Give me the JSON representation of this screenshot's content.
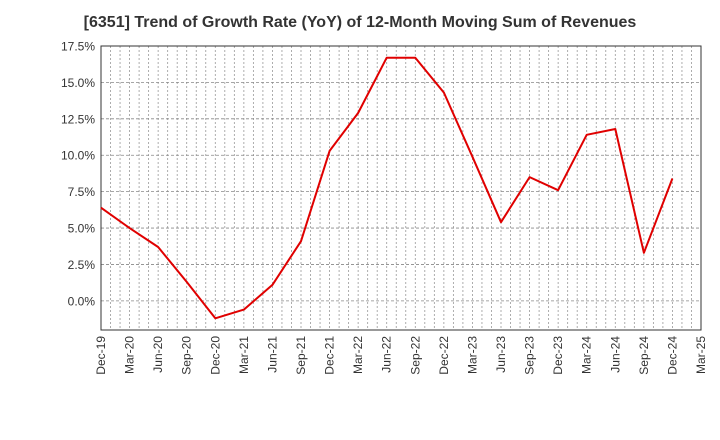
{
  "chart_data": {
    "type": "line",
    "title": "[6351]  Trend of Growth Rate (YoY) of 12-Month Moving Sum of Revenues",
    "xlabel": "",
    "ylabel": "",
    "ylim": [
      -2.0,
      17.5
    ],
    "yticks": [
      0.0,
      2.5,
      5.0,
      7.5,
      10.0,
      12.5,
      15.0,
      17.5
    ],
    "ytick_labels": [
      "0.0%",
      "2.5%",
      "5.0%",
      "7.5%",
      "10.0%",
      "12.5%",
      "15.0%",
      "17.5%"
    ],
    "xtick_labels": [
      "Dec-19",
      "Mar-20",
      "Jun-20",
      "Sep-20",
      "Dec-20",
      "Mar-21",
      "Jun-21",
      "Sep-21",
      "Dec-21",
      "Mar-22",
      "Jun-22",
      "Sep-22",
      "Dec-22",
      "Mar-23",
      "Jun-23",
      "Sep-23",
      "Dec-23",
      "Mar-24",
      "Jun-24",
      "Sep-24",
      "Dec-24",
      "Mar-25"
    ],
    "grid": true,
    "line_color": "#e00000",
    "series": [
      {
        "x": [
          "Dec-19",
          "Mar-20",
          "Jun-20",
          "Sep-20",
          "Dec-20",
          "Mar-21",
          "Jun-21",
          "Sep-21",
          "Dec-21",
          "Mar-22",
          "Jun-22",
          "Sep-22",
          "Dec-22",
          "Mar-23",
          "Jun-23",
          "Sep-23",
          "Dec-23",
          "Mar-24",
          "Jun-24",
          "Sep-24",
          "Dec-24"
        ],
        "values": [
          6.4,
          5.0,
          3.7,
          1.3,
          -1.2,
          -0.6,
          1.1,
          4.1,
          10.3,
          12.9,
          16.7,
          16.7,
          14.3,
          9.9,
          5.4,
          8.5,
          7.6,
          11.4,
          11.8,
          3.3,
          8.4
        ]
      }
    ]
  }
}
